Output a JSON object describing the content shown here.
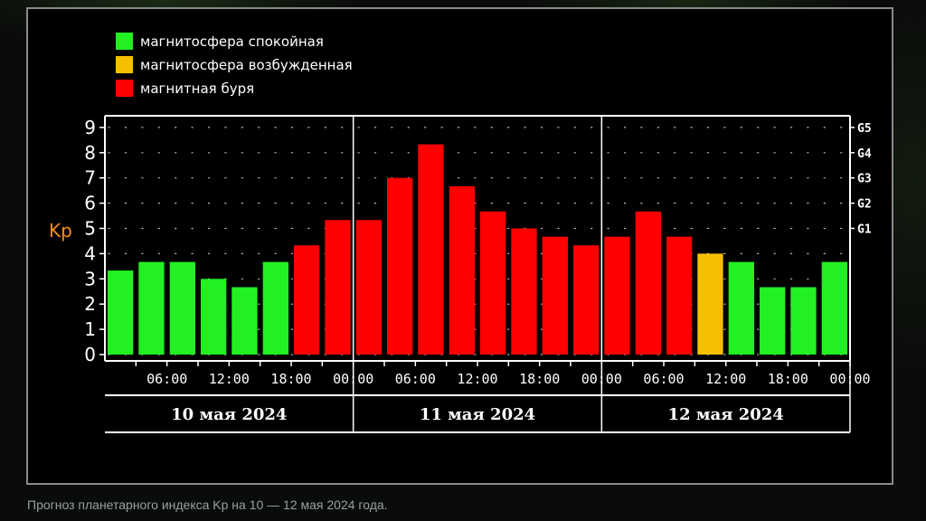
{
  "caption": "Прогноз планетарного индекса Kp на 10 — 12 мая 2024 года.",
  "colors": {
    "quiet": "#22f022",
    "excited": "#f5c000",
    "storm": "#ff0000",
    "axis": "#ffffff",
    "ylabel": "#ff8c1a"
  },
  "legend": [
    {
      "label": "магнитосфера спокойная",
      "color": "#22f022"
    },
    {
      "label": "магнитосфера возбужденная",
      "color": "#f5c000"
    },
    {
      "label": "магнитная буря",
      "color": "#ff0000"
    }
  ],
  "chart_data": {
    "type": "bar",
    "ylabel": "Kp",
    "ylim": [
      0,
      9.5
    ],
    "yticks": [
      "0",
      "1",
      "2",
      "3",
      "4",
      "5",
      "6",
      "7",
      "8",
      "9"
    ],
    "gscale": [
      {
        "label": "G1",
        "kp": 5
      },
      {
        "label": "G2",
        "kp": 6
      },
      {
        "label": "G3",
        "kp": 7
      },
      {
        "label": "G4",
        "kp": 8
      },
      {
        "label": "G5",
        "kp": 9
      }
    ],
    "xtick_labels": [
      "06:00",
      "12:00",
      "18:00",
      "00:00",
      "06:00",
      "12:00",
      "18:00",
      "00:00",
      "06:00",
      "12:00",
      "18:00",
      "00:00"
    ],
    "days": [
      "10 мая 2024",
      "11 мая 2024",
      "12 мая 2024"
    ],
    "values": [
      3.33,
      3.67,
      3.67,
      3.0,
      2.67,
      3.67,
      4.33,
      5.33,
      5.33,
      7.0,
      8.33,
      6.67,
      5.67,
      5.0,
      4.67,
      4.33,
      4.67,
      5.67,
      4.67,
      4.0,
      3.67,
      2.67,
      2.67,
      3.67
    ],
    "status": [
      "quiet",
      "quiet",
      "quiet",
      "quiet",
      "quiet",
      "quiet",
      "storm",
      "storm",
      "storm",
      "storm",
      "storm",
      "storm",
      "storm",
      "storm",
      "storm",
      "storm",
      "storm",
      "storm",
      "storm",
      "excited",
      "quiet",
      "quiet",
      "quiet",
      "quiet"
    ],
    "grid": true
  }
}
